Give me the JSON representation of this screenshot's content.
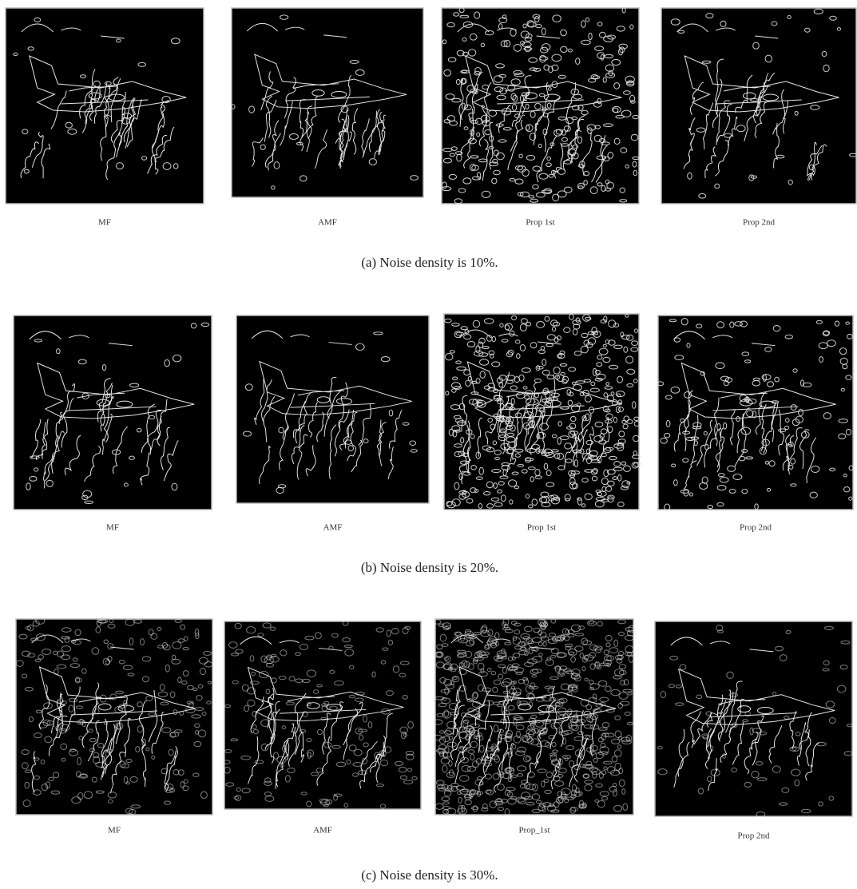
{
  "rows": [
    {
      "panels": [
        {
          "label": "MF"
        },
        {
          "label": "AMF"
        },
        {
          "label": "Prop 1st"
        },
        {
          "label": "Prop 2nd"
        }
      ],
      "caption": "(a) Noise density is 10%."
    },
    {
      "panels": [
        {
          "label": "MF"
        },
        {
          "label": "AMF"
        },
        {
          "label": "Prop 1st"
        },
        {
          "label": "Prop 2nd"
        }
      ],
      "caption": "(b) Noise density is 20%."
    },
    {
      "panels": [
        {
          "label": "MF"
        },
        {
          "label": "AMF"
        },
        {
          "label": "Prop_1st"
        },
        {
          "label": "Prop 2nd"
        }
      ],
      "caption": "(c) Noise density is 30%."
    }
  ]
}
